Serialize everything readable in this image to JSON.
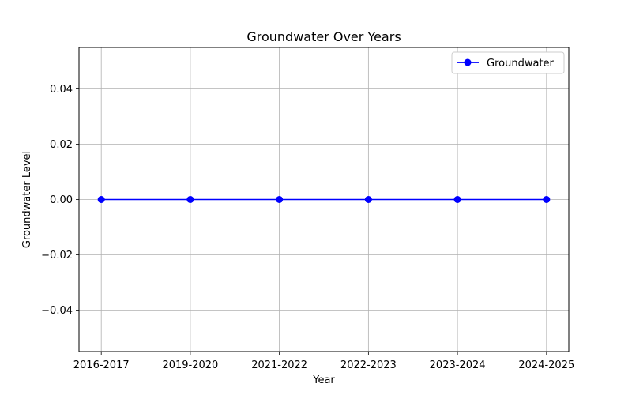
{
  "chart_data": {
    "type": "line",
    "title": "Groundwater Over Years",
    "xlabel": "Year",
    "ylabel": "Groundwater Level",
    "categories": [
      "2016-2017",
      "2019-2020",
      "2021-2022",
      "2022-2023",
      "2023-2024",
      "2024-2025"
    ],
    "series": [
      {
        "name": "Groundwater",
        "values": [
          0,
          0,
          0,
          0,
          0,
          0
        ],
        "color": "#0000ff",
        "marker": "circle"
      }
    ],
    "ylim": [
      -0.055,
      0.055
    ],
    "yticks": [
      -0.04,
      -0.02,
      0.0,
      0.02,
      0.04
    ],
    "ytick_labels": [
      "−0.04",
      "−0.02",
      "0.00",
      "0.02",
      "0.04"
    ],
    "grid": true,
    "legend_position": "top-right"
  }
}
